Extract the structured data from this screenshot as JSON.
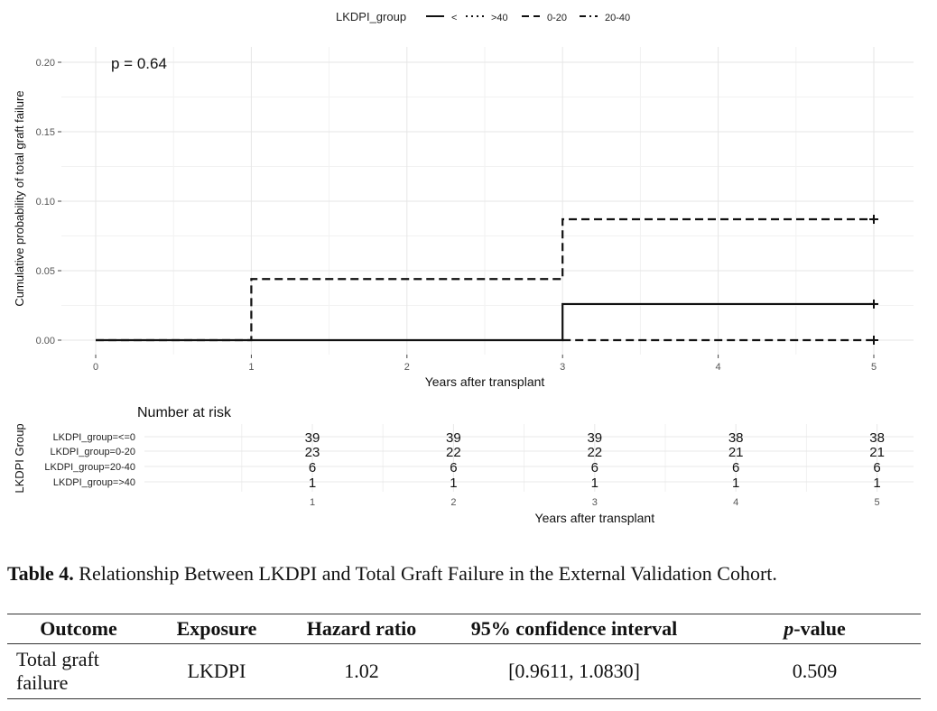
{
  "legend": {
    "title": "LKDPI_group",
    "entries": [
      {
        "label": "<",
        "dash": ""
      },
      {
        "label": ">40",
        "dash": "2,4"
      },
      {
        "label": "0-20",
        "dash": "8,5"
      },
      {
        "label": "20-40",
        "dash": "8,4,2,4"
      }
    ]
  },
  "chart_data": [
    {
      "type": "line",
      "annotation": "p = 0.64",
      "xlabel": "Years after transplant",
      "ylabel": "Cumulative probability of total graft failure",
      "xlim": [
        0,
        5
      ],
      "ylim": [
        0,
        0.2
      ],
      "xticks": [
        "0",
        "1",
        "2",
        "3",
        "4",
        "5"
      ],
      "yticks": [
        "0.00",
        "0.05",
        "0.10",
        "0.15",
        "0.20"
      ],
      "grid": true,
      "series": [
        {
          "style": "solid",
          "x": [
            0,
            3,
            3,
            5
          ],
          "y": [
            0,
            0,
            0.026,
            0.026
          ]
        },
        {
          "style": "dashed",
          "x": [
            0,
            1,
            1,
            3,
            3,
            5
          ],
          "y": [
            0,
            0,
            0.044,
            0.044,
            0.087,
            0.087
          ]
        },
        {
          "style": "dashed",
          "x": [
            3,
            5
          ],
          "y": [
            0,
            0
          ]
        }
      ],
      "censor_marks": [
        {
          "x": 5,
          "y": 0.087
        },
        {
          "x": 5,
          "y": 0.026
        },
        {
          "x": 5,
          "y": 0
        }
      ]
    },
    {
      "type": "table",
      "title": "Number at risk",
      "ylabel": "LKDPI Group",
      "xlabel": "Years after transplant",
      "columns": [
        "1",
        "2",
        "3",
        "4",
        "5"
      ],
      "rows": [
        {
          "label": "LKDPI_group=<=0",
          "values": [
            "39",
            "39",
            "39",
            "38",
            "38"
          ]
        },
        {
          "label": "LKDPI_group=0-20",
          "values": [
            "23",
            "22",
            "22",
            "21",
            "21"
          ]
        },
        {
          "label": "LKDPI_group=20-40",
          "values": [
            "6",
            "6",
            "6",
            "6",
            "6"
          ]
        },
        {
          "label": "LKDPI_group=>40",
          "values": [
            "1",
            "1",
            "1",
            "1",
            "1"
          ]
        }
      ]
    }
  ],
  "caption": {
    "label": "Table 4.",
    "text": " Relationship Between LKDPI and Total Graft Failure in the External Validation Cohort."
  },
  "table": {
    "headers": [
      "Outcome",
      "Exposure",
      "Hazard ratio",
      "95% confidence interval",
      "-value"
    ],
    "p_italic": "p",
    "row": {
      "outcome": "Total graft failure",
      "exposure": "LKDPI",
      "hazard_ratio": "1.02",
      "ci": "[0.9611, 1.0830]",
      "p_value": "0.509"
    }
  }
}
